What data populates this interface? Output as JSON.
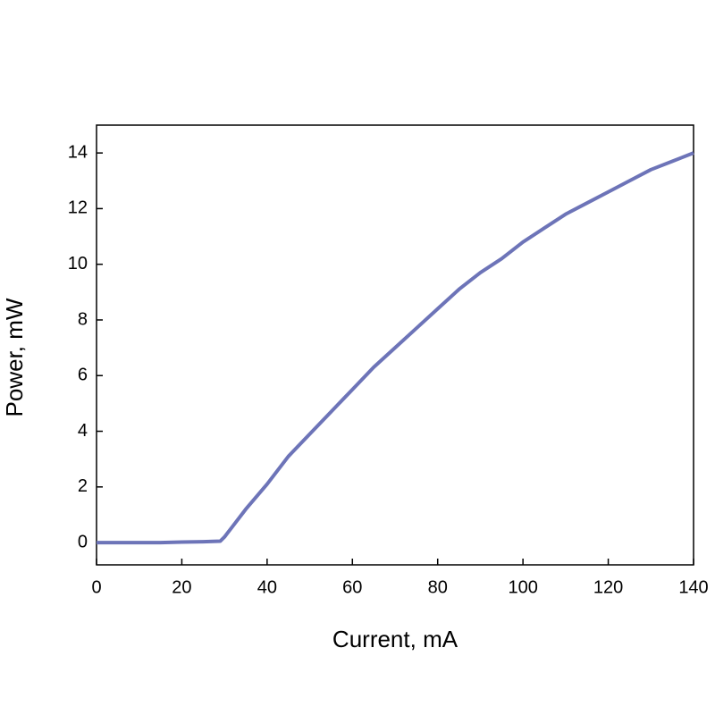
{
  "chart_data": {
    "type": "line",
    "x_label": "Current, mA",
    "y_label": "Power, mW",
    "x": [
      0,
      5,
      10,
      15,
      20,
      25,
      29,
      30,
      32,
      35,
      40,
      45,
      50,
      55,
      60,
      65,
      70,
      75,
      80,
      85,
      90,
      95,
      100,
      105,
      110,
      115,
      120,
      125,
      130,
      135,
      140
    ],
    "series": [
      {
        "color": "#6d74b8",
        "values": [
          0,
          0,
          0,
          0,
          0.02,
          0.03,
          0.05,
          0.2,
          0.6,
          1.2,
          2.1,
          3.1,
          3.9,
          4.7,
          5.5,
          6.3,
          7.0,
          7.7,
          8.4,
          9.1,
          9.7,
          10.2,
          10.8,
          11.3,
          11.8,
          12.2,
          12.6,
          13.0,
          13.4,
          13.7,
          14.0
        ]
      }
    ],
    "xlim": [
      0,
      140
    ],
    "xticks": [
      0,
      20,
      40,
      60,
      80,
      100,
      120,
      140
    ],
    "ylim": [
      -0.8,
      15
    ],
    "yticks": [
      0,
      2,
      4,
      6,
      8,
      10,
      12,
      14
    ]
  }
}
